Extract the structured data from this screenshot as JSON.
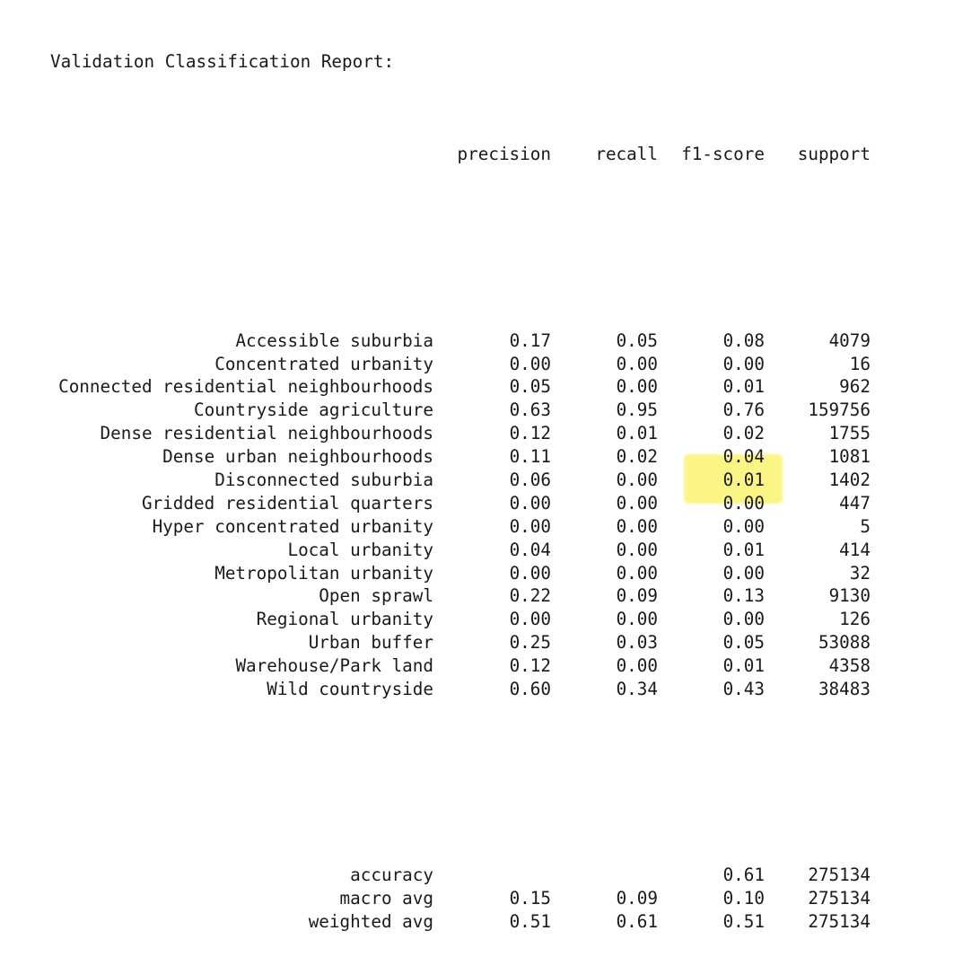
{
  "report": {
    "title": "Validation Classification Report:",
    "headers": {
      "precision": "precision",
      "recall": "recall",
      "f1": "f1-score",
      "support": "support"
    },
    "rows": [
      {
        "label": "Accessible suburbia",
        "precision": "0.17",
        "recall": "0.05",
        "f1": "0.08",
        "support": "4079"
      },
      {
        "label": "Concentrated urbanity",
        "precision": "0.00",
        "recall": "0.00",
        "f1": "0.00",
        "support": "16"
      },
      {
        "label": "Connected residential neighbourhoods",
        "precision": "0.05",
        "recall": "0.00",
        "f1": "0.01",
        "support": "962"
      },
      {
        "label": "Countryside agriculture",
        "precision": "0.63",
        "recall": "0.95",
        "f1": "0.76",
        "support": "159756"
      },
      {
        "label": "Dense residential neighbourhoods",
        "precision": "0.12",
        "recall": "0.01",
        "f1": "0.02",
        "support": "1755"
      },
      {
        "label": "Dense urban neighbourhoods",
        "precision": "0.11",
        "recall": "0.02",
        "f1": "0.04",
        "support": "1081"
      },
      {
        "label": "Disconnected suburbia",
        "precision": "0.06",
        "recall": "0.00",
        "f1": "0.01",
        "support": "1402"
      },
      {
        "label": "Gridded residential quarters",
        "precision": "0.00",
        "recall": "0.00",
        "f1": "0.00",
        "support": "447"
      },
      {
        "label": "Hyper concentrated urbanity",
        "precision": "0.00",
        "recall": "0.00",
        "f1": "0.00",
        "support": "5"
      },
      {
        "label": "Local urbanity",
        "precision": "0.04",
        "recall": "0.00",
        "f1": "0.01",
        "support": "414"
      },
      {
        "label": "Metropolitan urbanity",
        "precision": "0.00",
        "recall": "0.00",
        "f1": "0.00",
        "support": "32"
      },
      {
        "label": "Open sprawl",
        "precision": "0.22",
        "recall": "0.09",
        "f1": "0.13",
        "support": "9130"
      },
      {
        "label": "Regional urbanity",
        "precision": "0.00",
        "recall": "0.00",
        "f1": "0.00",
        "support": "126"
      },
      {
        "label": "Urban buffer",
        "precision": "0.25",
        "recall": "0.03",
        "f1": "0.05",
        "support": "53088"
      },
      {
        "label": "Warehouse/Park land",
        "precision": "0.12",
        "recall": "0.00",
        "f1": "0.01",
        "support": "4358"
      },
      {
        "label": "Wild countryside",
        "precision": "0.60",
        "recall": "0.34",
        "f1": "0.43",
        "support": "38483"
      }
    ],
    "summary": [
      {
        "label": "accuracy",
        "precision": "",
        "recall": "",
        "f1": "0.61",
        "support": "275134"
      },
      {
        "label": "macro avg",
        "precision": "0.15",
        "recall": "0.09",
        "f1": "0.10",
        "support": "275134"
      },
      {
        "label": "weighted avg",
        "precision": "0.51",
        "recall": "0.61",
        "f1": "0.51",
        "support": "275134"
      }
    ],
    "highlight_color": "#fbf57a"
  }
}
